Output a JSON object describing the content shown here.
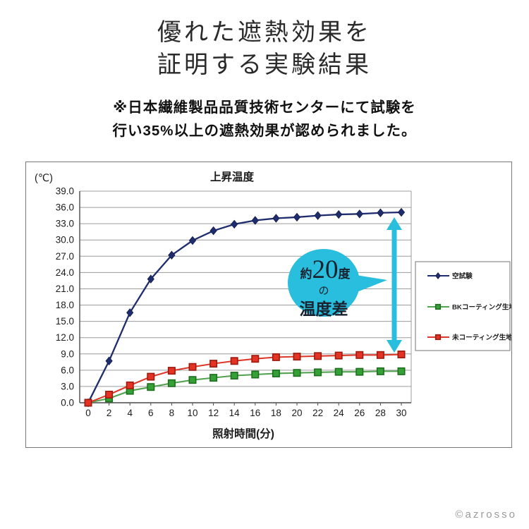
{
  "header": {
    "title_line1": "優れた遮熱効果を",
    "title_line2": "証明する実験結果",
    "note_line1": "※日本繊維製品品質技術センターにて試験を",
    "note_line2": "行い35%以上の遮熱効果が認められました。"
  },
  "footer": {
    "copyright": "©azrosso"
  },
  "chart_data": {
    "type": "line",
    "title": "上昇温度",
    "y_unit_label": "(℃)",
    "xlabel": "照射時間(分)",
    "x": [
      0,
      2,
      4,
      6,
      8,
      10,
      12,
      14,
      16,
      18,
      20,
      22,
      24,
      26,
      28,
      30
    ],
    "ylim": [
      0,
      39
    ],
    "ytick_step": 3.0,
    "ytick_format_decimals": 1,
    "grid": "horizontal-major-only",
    "legend_position": "right",
    "series": [
      {
        "name": "空試験",
        "marker": "diamond",
        "line_color": "#1f2d6e",
        "marker_color": "#1f2d6e",
        "marker_edge": "#141d4a",
        "values": [
          0.0,
          7.7,
          16.6,
          22.8,
          27.2,
          29.9,
          31.7,
          32.9,
          33.6,
          34.0,
          34.2,
          34.5,
          34.7,
          34.8,
          35.0,
          35.1
        ]
      },
      {
        "name": "BKコーティング生地",
        "marker": "square",
        "line_color": "#53a353",
        "marker_color": "#35a035",
        "marker_edge": "#1d6e1d",
        "values": [
          0.0,
          0.8,
          2.2,
          2.9,
          3.6,
          4.2,
          4.6,
          5.0,
          5.2,
          5.4,
          5.5,
          5.6,
          5.7,
          5.7,
          5.8,
          5.8
        ]
      },
      {
        "name": "未コーティング生地",
        "marker": "square",
        "line_color": "#dd392a",
        "marker_color": "#e23324",
        "marker_edge": "#9d1a0e",
        "values": [
          0.0,
          1.5,
          3.2,
          4.8,
          5.9,
          6.6,
          7.2,
          7.7,
          8.1,
          8.4,
          8.5,
          8.6,
          8.7,
          8.8,
          8.8,
          8.9
        ]
      }
    ],
    "annotation": {
      "balloon_small_prefix": "約",
      "balloon_big": "20",
      "balloon_small_suffix": "度",
      "balloon_mid": "の",
      "balloon_bottom": "温度差",
      "balloon_color": "#29bedd",
      "balloon_text_color": "#19222e",
      "arrow_color": "#29bedd",
      "arrow_at_x": 30
    },
    "colors": {
      "grid": "#9c9c9c",
      "axis": "#4a4a4a",
      "text": "#1c1c1c",
      "legend_border": "#8a8a8a"
    }
  }
}
